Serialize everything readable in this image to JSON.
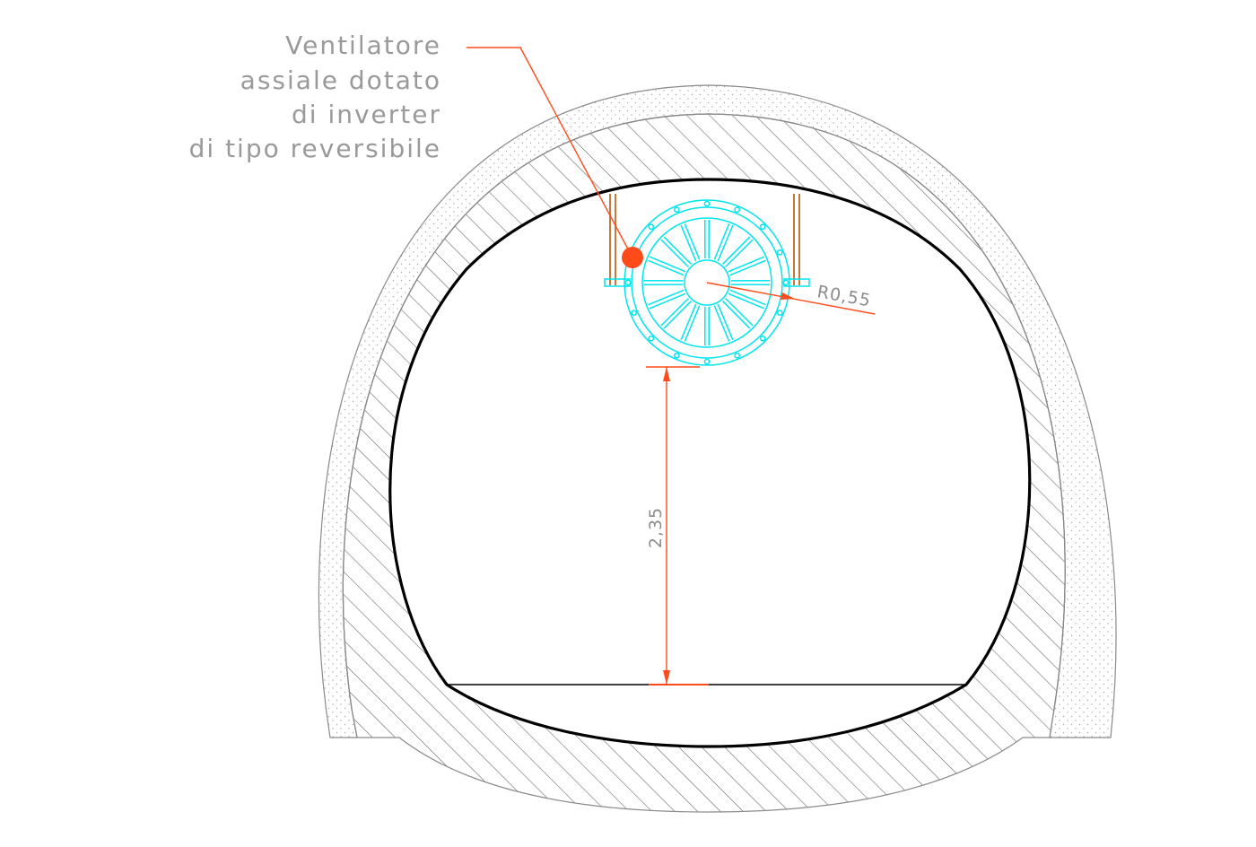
{
  "drawing": {
    "callout": {
      "lines": [
        "Ventilatore",
        "assiale dotato",
        "di inverter",
        "di tipo reversibile"
      ]
    },
    "radius_label": "R0,55",
    "height_label": "2,35"
  },
  "colors": {
    "background": "#ffffff",
    "outline": "#000000",
    "lining": "#8a8a8a",
    "fan": "#00e5ee",
    "annotation": "#ff4a1a",
    "support": "#c87838",
    "text": "#9a9a9a"
  },
  "icons": {
    "fan": "axial-fan-icon",
    "marker": "callout-dot-icon"
  }
}
